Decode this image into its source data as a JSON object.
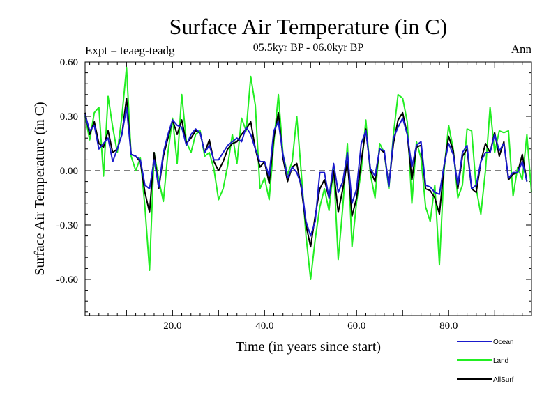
{
  "chart_data": {
    "type": "line",
    "title": "Surface Air Temperature (in C)",
    "subtitle": "05.5kyr BP - 06.0kyr BP",
    "expt_label": "Expt = teaeg-teadg",
    "period_label": "Ann",
    "xlabel": "Time (in years since start)",
    "ylabel": "Surface Air Temperature (in C)",
    "xlim": [
      1,
      98
    ],
    "ylim": [
      -0.8,
      0.6
    ],
    "x_ticks": [
      20,
      40,
      60,
      80
    ],
    "x_tick_labels": [
      "20.0",
      "40.0",
      "60.0",
      "80.0"
    ],
    "y_ticks": [
      0.6,
      0.3,
      0.0,
      -0.3,
      -0.6
    ],
    "y_tick_labels": [
      "0.60",
      "0.30",
      "0.00",
      "-0.30",
      "-0.60"
    ],
    "zero_line": "dashed",
    "legend_position": "bottom-right",
    "series": [
      {
        "name": "Land",
        "color": "#22ee22",
        "values": [
          0.3,
          0.17,
          0.32,
          0.35,
          -0.03,
          0.41,
          0.24,
          0.1,
          0.3,
          0.57,
          0.08,
          0.0,
          0.07,
          -0.2,
          -0.55,
          0.1,
          -0.05,
          -0.17,
          0.1,
          0.29,
          0.04,
          0.42,
          0.16,
          0.1,
          0.2,
          0.22,
          0.08,
          0.1,
          0.01,
          -0.16,
          -0.1,
          0.03,
          0.2,
          0.04,
          0.29,
          0.22,
          0.52,
          0.36,
          -0.1,
          -0.04,
          -0.16,
          0.15,
          0.42,
          0.09,
          -0.02,
          0.05,
          0.3,
          -0.02,
          -0.36,
          -0.6,
          -0.38,
          -0.2,
          -0.1,
          -0.22,
          0.02,
          -0.49,
          -0.2,
          0.15,
          -0.42,
          -0.17,
          0.0,
          0.28,
          -0.02,
          -0.15,
          0.15,
          0.1,
          -0.1,
          0.2,
          0.42,
          0.4,
          0.27,
          -0.18,
          0.16,
          0.07,
          -0.2,
          -0.28,
          -0.08,
          -0.52,
          0.0,
          0.25,
          0.12,
          -0.15,
          -0.08,
          0.23,
          0.22,
          -0.1,
          -0.24,
          0.0,
          0.35,
          0.1,
          0.22,
          0.21,
          0.22,
          -0.14,
          0.02,
          -0.05,
          0.2,
          -0.12
        ]
      },
      {
        "name": "AllSurf",
        "color": "#000000",
        "values": [
          0.32,
          0.2,
          0.27,
          0.15,
          0.13,
          0.22,
          0.1,
          0.12,
          0.2,
          0.4,
          0.09,
          0.08,
          0.05,
          -0.12,
          -0.23,
          0.1,
          -0.1,
          0.08,
          0.18,
          0.28,
          0.2,
          0.28,
          0.15,
          0.18,
          0.22,
          0.21,
          0.1,
          0.17,
          0.05,
          0.0,
          0.05,
          0.12,
          0.15,
          0.16,
          0.2,
          0.23,
          0.27,
          0.12,
          0.02,
          0.05,
          -0.07,
          0.18,
          0.32,
          0.07,
          -0.06,
          0.02,
          0.04,
          -0.1,
          -0.3,
          -0.42,
          -0.25,
          -0.1,
          -0.05,
          -0.15,
          0.0,
          -0.23,
          -0.1,
          0.05,
          -0.25,
          -0.15,
          0.05,
          0.23,
          0.0,
          -0.06,
          0.12,
          0.1,
          -0.08,
          0.15,
          0.28,
          0.32,
          0.2,
          -0.05,
          0.13,
          0.14,
          -0.1,
          -0.11,
          -0.15,
          -0.24,
          0.02,
          0.19,
          0.11,
          -0.1,
          0.08,
          0.12,
          -0.1,
          -0.12,
          0.05,
          0.15,
          0.1,
          0.21,
          0.08,
          0.16,
          -0.05,
          -0.02,
          -0.01,
          0.09,
          -0.06
        ]
      },
      {
        "name": "Ocean",
        "color": "#1a1acc",
        "values": [
          0.31,
          0.22,
          0.25,
          0.12,
          0.15,
          0.18,
          0.05,
          0.12,
          0.2,
          0.35,
          0.09,
          0.08,
          0.06,
          -0.08,
          -0.1,
          0.06,
          -0.09,
          0.1,
          0.2,
          0.28,
          0.25,
          0.24,
          0.14,
          0.2,
          0.23,
          0.21,
          0.1,
          0.14,
          0.06,
          0.06,
          0.1,
          0.14,
          0.16,
          0.18,
          0.16,
          0.24,
          0.2,
          0.12,
          0.05,
          0.05,
          -0.03,
          0.22,
          0.27,
          0.09,
          -0.04,
          0.02,
          -0.01,
          -0.08,
          -0.28,
          -0.36,
          -0.28,
          -0.01,
          -0.01,
          -0.15,
          0.04,
          -0.12,
          -0.06,
          0.1,
          -0.18,
          -0.1,
          0.15,
          0.22,
          0.01,
          -0.03,
          0.12,
          0.11,
          -0.09,
          0.18,
          0.24,
          0.29,
          0.2,
          0.02,
          0.14,
          0.16,
          -0.08,
          -0.09,
          -0.12,
          -0.13,
          0.03,
          0.15,
          0.09,
          -0.08,
          0.1,
          0.14,
          -0.1,
          -0.08,
          0.05,
          0.1,
          0.1,
          0.2,
          0.11,
          0.15,
          -0.04,
          -0.01,
          -0.01,
          0.05,
          -0.06
        ]
      }
    ],
    "legend": [
      {
        "name": "Ocean",
        "color": "#1a1acc"
      },
      {
        "name": "Land",
        "color": "#22ee22"
      },
      {
        "name": "AllSurf",
        "color": "#000000"
      }
    ]
  }
}
